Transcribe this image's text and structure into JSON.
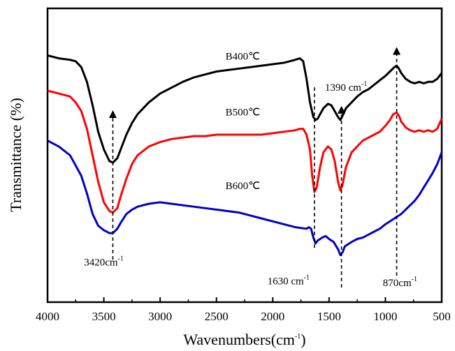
{
  "chart_data": {
    "type": "line",
    "xlabel": "Wavenumbers(cm",
    "xlabel_sup": "-1",
    "xlabel_close": ")",
    "ylabel": "Transmittance (%)",
    "xlim": [
      4000,
      500
    ],
    "x_reversed": true,
    "y_ticks_shown": false,
    "ylim": [
      0,
      100
    ],
    "x_ticks": [
      4000,
      3500,
      3000,
      2500,
      2000,
      1500,
      1000,
      500
    ],
    "x_tick_labels": [
      "4000",
      "3500",
      "3000",
      "2500",
      "2000",
      "1500",
      "1000",
      "500"
    ],
    "series": [
      {
        "name": "B400℃",
        "color": "#000000",
        "points": [
          [
            4000,
            84
          ],
          [
            3900,
            83
          ],
          [
            3800,
            82.5
          ],
          [
            3750,
            82
          ],
          [
            3700,
            80
          ],
          [
            3650,
            75
          ],
          [
            3600,
            67
          ],
          [
            3550,
            58
          ],
          [
            3500,
            52
          ],
          [
            3450,
            48
          ],
          [
            3420,
            47.5
          ],
          [
            3380,
            49
          ],
          [
            3350,
            52
          ],
          [
            3300,
            57
          ],
          [
            3250,
            61
          ],
          [
            3200,
            64
          ],
          [
            3100,
            68
          ],
          [
            3000,
            71
          ],
          [
            2900,
            73
          ],
          [
            2800,
            75
          ],
          [
            2700,
            76.5
          ],
          [
            2600,
            77.5
          ],
          [
            2500,
            78.5
          ],
          [
            2400,
            79
          ],
          [
            2300,
            79.5
          ],
          [
            2200,
            80
          ],
          [
            2100,
            80.5
          ],
          [
            2000,
            81
          ],
          [
            1900,
            81.5
          ],
          [
            1800,
            82.5
          ],
          [
            1760,
            83
          ],
          [
            1730,
            82
          ],
          [
            1700,
            76
          ],
          [
            1670,
            68
          ],
          [
            1640,
            63
          ],
          [
            1620,
            62
          ],
          [
            1600,
            62.5
          ],
          [
            1580,
            64
          ],
          [
            1550,
            66
          ],
          [
            1510,
            67.5
          ],
          [
            1480,
            67
          ],
          [
            1450,
            65
          ],
          [
            1420,
            63
          ],
          [
            1400,
            62
          ],
          [
            1380,
            63.5
          ],
          [
            1350,
            66
          ],
          [
            1300,
            68
          ],
          [
            1250,
            70
          ],
          [
            1200,
            71.5
          ],
          [
            1150,
            72.5
          ],
          [
            1100,
            74
          ],
          [
            1050,
            75.5
          ],
          [
            1000,
            77
          ],
          [
            960,
            78.5
          ],
          [
            920,
            80
          ],
          [
            900,
            80.5
          ],
          [
            880,
            79.5
          ],
          [
            860,
            78
          ],
          [
            820,
            76
          ],
          [
            780,
            75
          ],
          [
            740,
            74.5
          ],
          [
            700,
            75
          ],
          [
            660,
            74.5
          ],
          [
            620,
            75
          ],
          [
            580,
            75
          ],
          [
            540,
            76
          ],
          [
            500,
            78
          ]
        ]
      },
      {
        "name": "B500℃",
        "color": "#ff0000",
        "points": [
          [
            4000,
            72
          ],
          [
            3900,
            71
          ],
          [
            3800,
            70
          ],
          [
            3750,
            68
          ],
          [
            3700,
            65
          ],
          [
            3650,
            59
          ],
          [
            3600,
            50
          ],
          [
            3550,
            41
          ],
          [
            3500,
            34
          ],
          [
            3450,
            31
          ],
          [
            3420,
            30.5
          ],
          [
            3380,
            32
          ],
          [
            3350,
            36
          ],
          [
            3300,
            42
          ],
          [
            3250,
            47
          ],
          [
            3200,
            50
          ],
          [
            3100,
            53
          ],
          [
            3000,
            54.5
          ],
          [
            2900,
            55.5
          ],
          [
            2800,
            56
          ],
          [
            2700,
            56.5
          ],
          [
            2600,
            56.5
          ],
          [
            2500,
            57
          ],
          [
            2400,
            57
          ],
          [
            2300,
            57
          ],
          [
            2200,
            57
          ],
          [
            2100,
            57
          ],
          [
            2000,
            57.5
          ],
          [
            1900,
            58
          ],
          [
            1800,
            58.5
          ],
          [
            1760,
            59
          ],
          [
            1730,
            59
          ],
          [
            1700,
            57
          ],
          [
            1670,
            52
          ],
          [
            1650,
            43
          ],
          [
            1630,
            37.5
          ],
          [
            1610,
            39
          ],
          [
            1580,
            46
          ],
          [
            1550,
            51
          ],
          [
            1510,
            53
          ],
          [
            1480,
            52
          ],
          [
            1450,
            48
          ],
          [
            1420,
            41
          ],
          [
            1400,
            38
          ],
          [
            1380,
            40
          ],
          [
            1350,
            46
          ],
          [
            1300,
            51
          ],
          [
            1250,
            53
          ],
          [
            1200,
            55
          ],
          [
            1150,
            56
          ],
          [
            1100,
            57
          ],
          [
            1050,
            58
          ],
          [
            1000,
            60
          ],
          [
            960,
            62
          ],
          [
            930,
            64
          ],
          [
            900,
            64.5
          ],
          [
            880,
            63.5
          ],
          [
            860,
            61.5
          ],
          [
            820,
            59.5
          ],
          [
            780,
            58.5
          ],
          [
            740,
            58
          ],
          [
            700,
            58.5
          ],
          [
            660,
            58
          ],
          [
            620,
            58.5
          ],
          [
            580,
            58
          ],
          [
            540,
            59
          ],
          [
            500,
            62.5
          ]
        ]
      },
      {
        "name": "B600℃",
        "color": "#0000cc",
        "points": [
          [
            4000,
            55
          ],
          [
            3900,
            53
          ],
          [
            3800,
            50
          ],
          [
            3750,
            46.5
          ],
          [
            3700,
            43
          ],
          [
            3650,
            37
          ],
          [
            3600,
            30
          ],
          [
            3550,
            26
          ],
          [
            3500,
            24.5
          ],
          [
            3450,
            23.5
          ],
          [
            3420,
            23.5
          ],
          [
            3380,
            25
          ],
          [
            3350,
            27
          ],
          [
            3300,
            30
          ],
          [
            3250,
            31.5
          ],
          [
            3200,
            32.5
          ],
          [
            3100,
            33.5
          ],
          [
            3000,
            34
          ],
          [
            2900,
            33.5
          ],
          [
            2800,
            33
          ],
          [
            2700,
            32.5
          ],
          [
            2600,
            32
          ],
          [
            2500,
            31.5
          ],
          [
            2400,
            31
          ],
          [
            2300,
            30.5
          ],
          [
            2200,
            29.5
          ],
          [
            2100,
            28.5
          ],
          [
            2000,
            27.5
          ],
          [
            1900,
            26.5
          ],
          [
            1800,
            25.5
          ],
          [
            1700,
            25
          ],
          [
            1680,
            25.5
          ],
          [
            1660,
            25
          ],
          [
            1640,
            22
          ],
          [
            1620,
            20
          ],
          [
            1600,
            21
          ],
          [
            1560,
            22
          ],
          [
            1530,
            22.5
          ],
          [
            1500,
            21.5
          ],
          [
            1460,
            20.5
          ],
          [
            1420,
            18
          ],
          [
            1400,
            16
          ],
          [
            1380,
            17
          ],
          [
            1360,
            19
          ],
          [
            1300,
            20.5
          ],
          [
            1250,
            21.5
          ],
          [
            1200,
            22
          ],
          [
            1150,
            23
          ],
          [
            1100,
            24
          ],
          [
            1050,
            25
          ],
          [
            1000,
            26.5
          ],
          [
            960,
            27.5
          ],
          [
            920,
            28.5
          ],
          [
            900,
            29
          ],
          [
            860,
            30
          ],
          [
            820,
            31.5
          ],
          [
            780,
            33
          ],
          [
            740,
            34.5
          ],
          [
            700,
            36.5
          ],
          [
            660,
            39
          ],
          [
            620,
            41.5
          ],
          [
            580,
            44
          ],
          [
            540,
            47
          ],
          [
            500,
            51
          ]
        ]
      }
    ],
    "curve_labels": [
      {
        "text": "B400℃",
        "x": 2420,
        "y": 82.5
      },
      {
        "text": "B500℃",
        "x": 2420,
        "y": 63.5
      },
      {
        "text": "B600℃",
        "x": 2420,
        "y": 38.5
      }
    ],
    "annotations": [
      {
        "label": "3420cm",
        "sup": "-1",
        "x_at": 3420,
        "text_x": 3500,
        "y_text": 12.5,
        "arrow_from": 14.5,
        "arrow_to": 64,
        "arrow_up": true
      },
      {
        "label": "1630 cm",
        "sup": "-1",
        "x_at": 1630,
        "text_x": 1860,
        "y_text": 6,
        "arrow_from": 18.5,
        "arrow_to": 74,
        "arrow_up": false
      },
      {
        "label": "1390 cm",
        "sup": "-1",
        "x_at": 1390,
        "text_x": 1350,
        "y_text": 72,
        "arrow_from": 5,
        "arrow_to": 65.5,
        "arrow_up": true
      },
      {
        "label": "870cm",
        "sup": "-1",
        "x_at": 900,
        "text_x": 870,
        "y_text": 5.5,
        "arrow_from": 9,
        "arrow_to": 85.5,
        "arrow_up": true
      }
    ]
  }
}
